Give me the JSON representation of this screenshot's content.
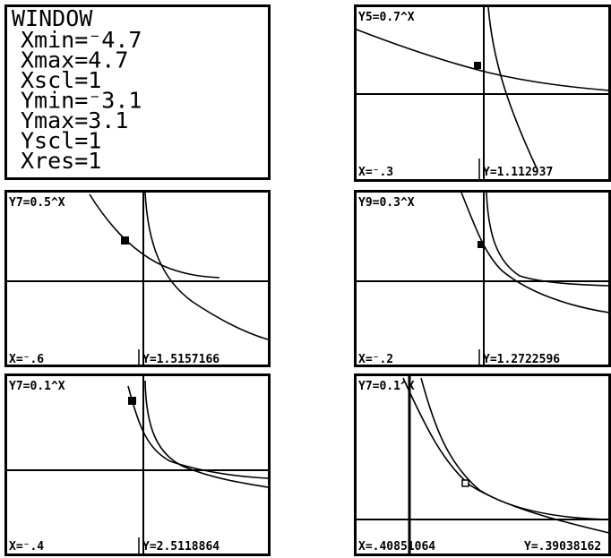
{
  "window": {
    "title": "WINDOW",
    "lines": [
      "Xmin=⁻4.7",
      "Xmax=4.7",
      "Xscl=1",
      "Ymin=⁻3.1",
      "Ymax=3.1",
      "Yscl=1",
      "Xres=1"
    ]
  },
  "graphs": [
    {
      "equation": "Y5=0.7^X",
      "x_readout": "X=⁻.3",
      "y_readout": "Y=1.112937"
    },
    {
      "equation": "Y7=0.5^X",
      "x_readout": "X=⁻.6",
      "y_readout": "Y=1.5157166"
    },
    {
      "equation": "Y9=0.3^X",
      "x_readout": "X=⁻.2",
      "y_readout": "Y=1.2722596"
    },
    {
      "equation": "Y7=0.1^X",
      "x_readout": "X=⁻.4",
      "y_readout": "Y=2.5118864"
    },
    {
      "equation": "Y7=0.1^X",
      "x_readout": "X=.40851064",
      "y_readout": "Y=.39038162"
    }
  ]
}
